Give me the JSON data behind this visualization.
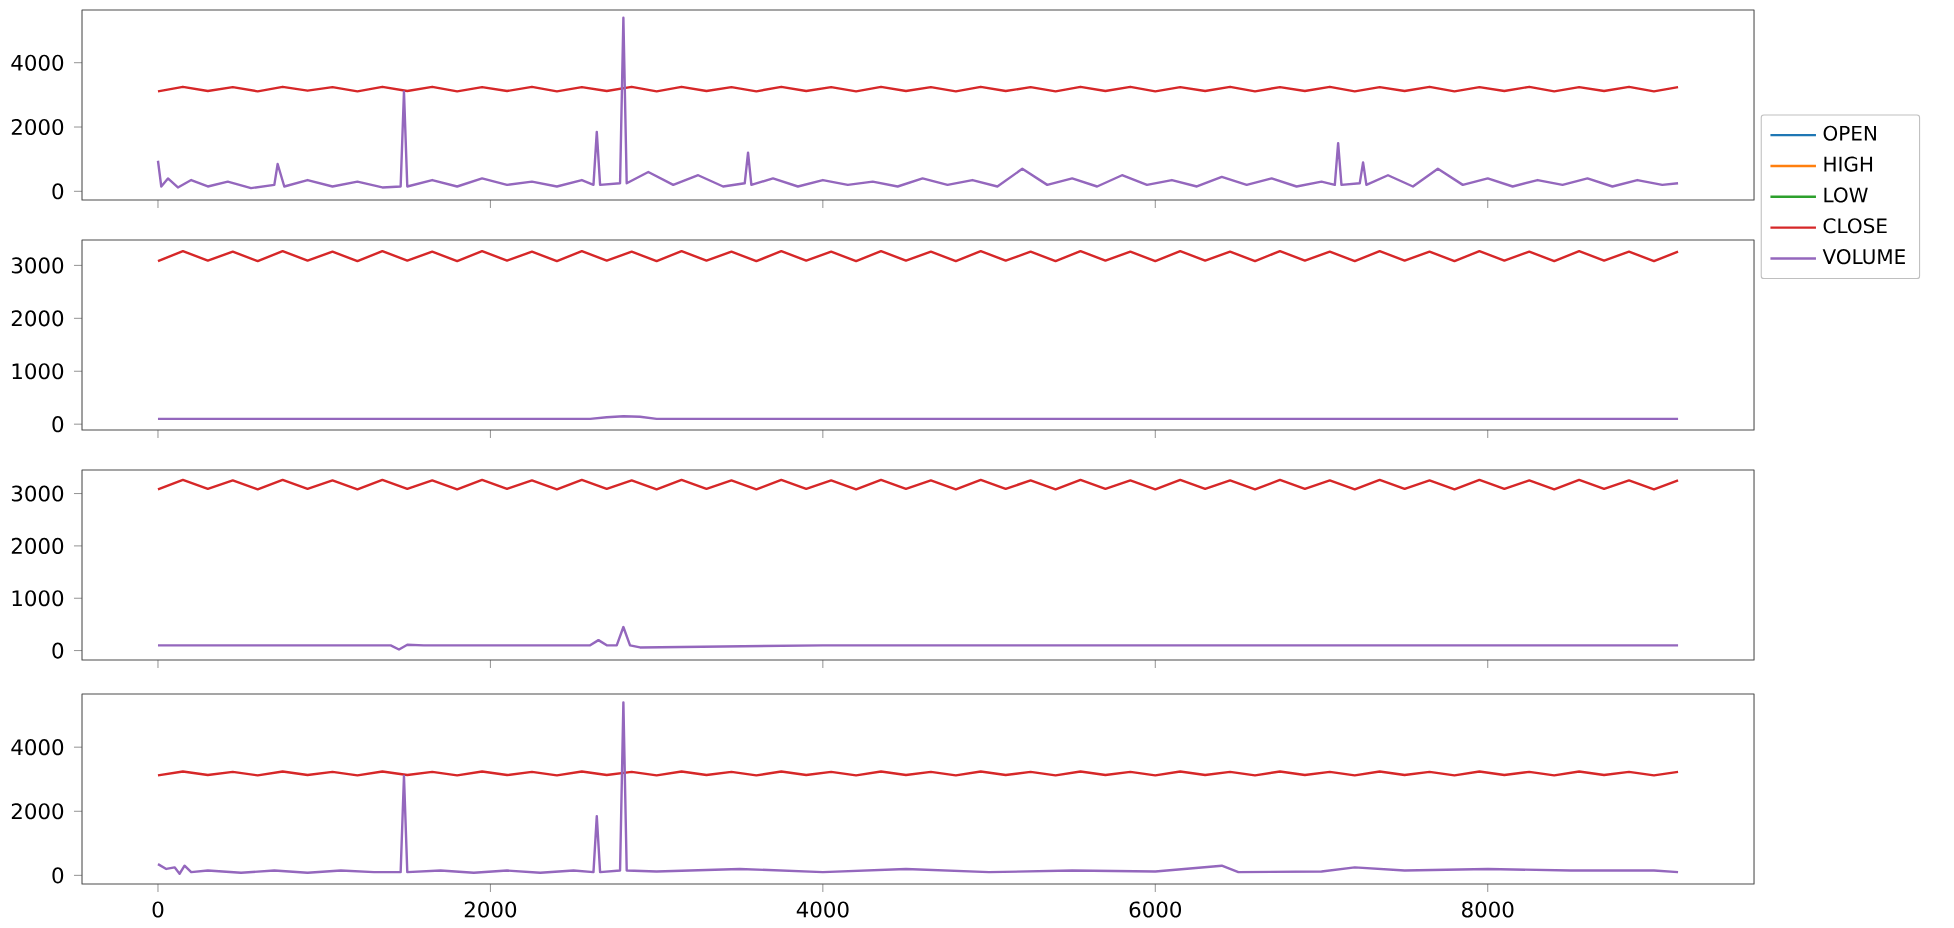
{
  "chart_data": [
    {
      "type": "line",
      "xlim": [
        -457,
        9602
      ],
      "ylim": [
        -270,
        5640
      ],
      "xticks": [
        0,
        2000,
        4000,
        6000,
        8000
      ],
      "yticks": [
        0,
        2000,
        4000
      ],
      "tick_labels": "y",
      "legend": "right",
      "marker": "none",
      "line_style": "solid",
      "x": [
        0,
        150,
        300,
        450,
        600,
        750,
        900,
        1050,
        1200,
        1350,
        1500,
        1650,
        1800,
        1950,
        2100,
        2250,
        2400,
        2550,
        2700,
        2850,
        3000,
        3150,
        3300,
        3450,
        3600,
        3750,
        3900,
        4050,
        4200,
        4350,
        4500,
        4650,
        4800,
        4950,
        5100,
        5250,
        5400,
        5550,
        5700,
        5850,
        6000,
        6150,
        6300,
        6450,
        6600,
        6750,
        6900,
        7050,
        7200,
        7350,
        7500,
        7650,
        7800,
        7950,
        8100,
        8250,
        8400,
        8550,
        8700,
        8850,
        9000,
        9145
      ],
      "series": [
        {
          "name": "OPEN",
          "color": "#1f77b4",
          "values": [
            null,
            null,
            null,
            null,
            null,
            null,
            null,
            null,
            null,
            null,
            null,
            null,
            null,
            null,
            null,
            null,
            null,
            null,
            null,
            null,
            null,
            null,
            null,
            null,
            null,
            null,
            null,
            null,
            null,
            null,
            null,
            null,
            null,
            null,
            null,
            null,
            null,
            null,
            null,
            null,
            null,
            null,
            null,
            null,
            null,
            null,
            null,
            null,
            null,
            null,
            null,
            null,
            null,
            null,
            null,
            null,
            null,
            null,
            null,
            null,
            null,
            null
          ]
        },
        {
          "name": "HIGH",
          "color": "#ff7f0e",
          "values": [
            null,
            null,
            null,
            null,
            null,
            null,
            null,
            null,
            null,
            null,
            null,
            null,
            null,
            null,
            null,
            null,
            null,
            null,
            null,
            null,
            null,
            null,
            null,
            null,
            null,
            null,
            null,
            null,
            null,
            null,
            null,
            null,
            null,
            null,
            null,
            null,
            null,
            null,
            null,
            null,
            null,
            null,
            null,
            null,
            null,
            null,
            null,
            null,
            null,
            null,
            null,
            null,
            null,
            null,
            null,
            null,
            null,
            null,
            null,
            null,
            null,
            null
          ]
        },
        {
          "name": "LOW",
          "color": "#2ca02c",
          "values": [
            null,
            null,
            null,
            null,
            null,
            null,
            null,
            null,
            null,
            null,
            null,
            null,
            null,
            null,
            null,
            null,
            null,
            null,
            null,
            null,
            null,
            null,
            null,
            null,
            null,
            null,
            null,
            null,
            null,
            null,
            null,
            null,
            null,
            null,
            null,
            null,
            null,
            null,
            null,
            null,
            null,
            null,
            null,
            null,
            null,
            null,
            null,
            null,
            null,
            null,
            null,
            null,
            null,
            null,
            null,
            null,
            null,
            null,
            null,
            null,
            null,
            null
          ]
        },
        {
          "name": "CLOSE",
          "color": "#d62728",
          "values": [
            3110,
            3250,
            3120,
            3240,
            3110,
            3250,
            3130,
            3240,
            3110,
            3250,
            3120,
            3250,
            3110,
            3240,
            3120,
            3250,
            3110,
            3240,
            3120,
            3250,
            3110,
            3250,
            3120,
            3240,
            3110,
            3250,
            3120,
            3240,
            3110,
            3250,
            3120,
            3240,
            3110,
            3250,
            3120,
            3240,
            3110,
            3250,
            3120,
            3250,
            3110,
            3240,
            3120,
            3250,
            3110,
            3240,
            3120,
            3250,
            3110,
            3240,
            3120,
            3250,
            3110,
            3240,
            3120,
            3250,
            3110,
            3240,
            3120,
            3250,
            3110,
            3240
          ]
        },
        {
          "name": "VOLUME",
          "color": "#9467bd",
          "x": [
            0,
            20,
            60,
            120,
            200,
            300,
            420,
            560,
            700,
            720,
            760,
            900,
            1050,
            1200,
            1350,
            1460,
            1480,
            1500,
            1650,
            1800,
            1950,
            2100,
            2250,
            2400,
            2550,
            2620,
            2640,
            2660,
            2780,
            2800,
            2820,
            2950,
            3100,
            3250,
            3400,
            3530,
            3550,
            3570,
            3700,
            3850,
            4000,
            4150,
            4300,
            4450,
            4600,
            4750,
            4900,
            5050,
            5200,
            5350,
            5500,
            5650,
            5800,
            5950,
            6100,
            6250,
            6400,
            6550,
            6700,
            6850,
            7000,
            7080,
            7100,
            7120,
            7230,
            7250,
            7270,
            7400,
            7550,
            7700,
            7850,
            8000,
            8150,
            8300,
            8450,
            8600,
            8750,
            8900,
            9050,
            9145
          ],
          "values": [
            950,
            150,
            400,
            120,
            350,
            150,
            300,
            100,
            200,
            850,
            150,
            350,
            150,
            300,
            120,
            150,
            3100,
            150,
            350,
            150,
            400,
            200,
            300,
            150,
            350,
            200,
            1850,
            200,
            250,
            5400,
            250,
            600,
            200,
            500,
            150,
            250,
            1200,
            200,
            400,
            150,
            350,
            200,
            300,
            150,
            400,
            200,
            350,
            150,
            700,
            200,
            400,
            150,
            500,
            200,
            350,
            150,
            450,
            200,
            400,
            150,
            300,
            200,
            1500,
            200,
            250,
            900,
            200,
            500,
            150,
            700,
            200,
            400,
            150,
            350,
            200,
            400,
            150,
            350,
            200,
            250
          ]
        }
      ]
    },
    {
      "type": "line",
      "xlim": [
        -457,
        9602
      ],
      "ylim": [
        -110,
        3480
      ],
      "xticks": [
        0,
        2000,
        4000,
        6000,
        8000
      ],
      "yticks": [
        0,
        1000,
        2000,
        3000
      ],
      "tick_labels": "y",
      "marker": "none",
      "line_style": "solid",
      "x": [
        0,
        150,
        300,
        450,
        600,
        750,
        900,
        1050,
        1200,
        1350,
        1500,
        1650,
        1800,
        1950,
        2100,
        2250,
        2400,
        2550,
        2700,
        2850,
        3000,
        3150,
        3300,
        3450,
        3600,
        3750,
        3900,
        4050,
        4200,
        4350,
        4500,
        4650,
        4800,
        4950,
        5100,
        5250,
        5400,
        5550,
        5700,
        5850,
        6000,
        6150,
        6300,
        6450,
        6600,
        6750,
        6900,
        7050,
        7200,
        7350,
        7500,
        7650,
        7800,
        7950,
        8100,
        8250,
        8400,
        8550,
        8700,
        8850,
        9000,
        9145
      ],
      "series": [
        {
          "color": "#d62728",
          "values": [
            3080,
            3270,
            3090,
            3260,
            3080,
            3270,
            3090,
            3260,
            3080,
            3270,
            3090,
            3260,
            3080,
            3270,
            3090,
            3260,
            3080,
            3270,
            3090,
            3260,
            3080,
            3270,
            3090,
            3260,
            3080,
            3270,
            3090,
            3260,
            3080,
            3270,
            3090,
            3260,
            3080,
            3270,
            3090,
            3260,
            3080,
            3270,
            3090,
            3260,
            3080,
            3270,
            3090,
            3260,
            3080,
            3270,
            3090,
            3260,
            3080,
            3270,
            3090,
            3260,
            3080,
            3270,
            3090,
            3260,
            3080,
            3270,
            3090,
            3260,
            3080,
            3260
          ]
        },
        {
          "color": "#9467bd",
          "x": [
            0,
            1000,
            2000,
            2600,
            2700,
            2800,
            2900,
            3000,
            4000,
            6000,
            8000,
            9145
          ],
          "values": [
            100,
            100,
            100,
            100,
            130,
            150,
            140,
            100,
            100,
            100,
            100,
            100
          ]
        }
      ]
    },
    {
      "type": "line",
      "xlim": [
        -457,
        9602
      ],
      "ylim": [
        -180,
        3450
      ],
      "xticks": [
        0,
        2000,
        4000,
        6000,
        8000
      ],
      "yticks": [
        0,
        1000,
        2000,
        3000
      ],
      "tick_labels": "y",
      "marker": "none",
      "line_style": "solid",
      "x": [
        0,
        150,
        300,
        450,
        600,
        750,
        900,
        1050,
        1200,
        1350,
        1500,
        1650,
        1800,
        1950,
        2100,
        2250,
        2400,
        2550,
        2700,
        2850,
        3000,
        3150,
        3300,
        3450,
        3600,
        3750,
        3900,
        4050,
        4200,
        4350,
        4500,
        4650,
        4800,
        4950,
        5100,
        5250,
        5400,
        5550,
        5700,
        5850,
        6000,
        6150,
        6300,
        6450,
        6600,
        6750,
        6900,
        7050,
        7200,
        7350,
        7500,
        7650,
        7800,
        7950,
        8100,
        8250,
        8400,
        8550,
        8700,
        8850,
        9000,
        9145
      ],
      "series": [
        {
          "color": "#d62728",
          "values": [
            3080,
            3260,
            3090,
            3250,
            3080,
            3260,
            3090,
            3250,
            3080,
            3260,
            3090,
            3250,
            3080,
            3260,
            3090,
            3250,
            3080,
            3260,
            3090,
            3250,
            3080,
            3260,
            3090,
            3250,
            3080,
            3260,
            3090,
            3250,
            3080,
            3260,
            3090,
            3250,
            3080,
            3260,
            3090,
            3250,
            3080,
            3260,
            3090,
            3250,
            3080,
            3260,
            3090,
            3250,
            3080,
            3260,
            3090,
            3250,
            3080,
            3260,
            3090,
            3250,
            3080,
            3260,
            3090,
            3250,
            3080,
            3260,
            3090,
            3250,
            3080,
            3250
          ]
        },
        {
          "color": "#9467bd",
          "x": [
            0,
            1000,
            1400,
            1450,
            1500,
            1600,
            2000,
            2600,
            2650,
            2700,
            2760,
            2800,
            2840,
            2900,
            4000,
            6000,
            8000,
            9145
          ],
          "values": [
            100,
            100,
            100,
            20,
            110,
            100,
            100,
            100,
            200,
            100,
            100,
            450,
            100,
            60,
            100,
            100,
            100,
            100
          ]
        }
      ]
    },
    {
      "type": "line",
      "xlim": [
        -457,
        9602
      ],
      "ylim": [
        -270,
        5660
      ],
      "xticks": [
        0,
        2000,
        4000,
        6000,
        8000
      ],
      "yticks": [
        0,
        2000,
        4000
      ],
      "marker": "none",
      "line_style": "solid",
      "x": [
        0,
        150,
        300,
        450,
        600,
        750,
        900,
        1050,
        1200,
        1350,
        1500,
        1650,
        1800,
        1950,
        2100,
        2250,
        2400,
        2550,
        2700,
        2850,
        3000,
        3150,
        3300,
        3450,
        3600,
        3750,
        3900,
        4050,
        4200,
        4350,
        4500,
        4650,
        4800,
        4950,
        5100,
        5250,
        5400,
        5550,
        5700,
        5850,
        6000,
        6150,
        6300,
        6450,
        6600,
        6750,
        6900,
        7050,
        7200,
        7350,
        7500,
        7650,
        7800,
        7950,
        8100,
        8250,
        8400,
        8550,
        8700,
        8850,
        9000,
        9145
      ],
      "series": [
        {
          "color": "#d62728",
          "values": [
            3120,
            3240,
            3130,
            3230,
            3120,
            3240,
            3130,
            3230,
            3120,
            3240,
            3130,
            3230,
            3120,
            3240,
            3130,
            3230,
            3120,
            3240,
            3130,
            3230,
            3120,
            3240,
            3130,
            3230,
            3120,
            3240,
            3130,
            3230,
            3120,
            3240,
            3130,
            3230,
            3120,
            3240,
            3130,
            3230,
            3120,
            3240,
            3130,
            3230,
            3120,
            3240,
            3130,
            3230,
            3120,
            3240,
            3130,
            3230,
            3120,
            3240,
            3130,
            3230,
            3120,
            3240,
            3130,
            3230,
            3120,
            3240,
            3130,
            3230,
            3120,
            3230
          ]
        },
        {
          "color": "#9467bd",
          "x": [
            0,
            50,
            100,
            130,
            160,
            200,
            300,
            500,
            700,
            900,
            1100,
            1300,
            1460,
            1480,
            1500,
            1700,
            1900,
            2100,
            2300,
            2500,
            2620,
            2640,
            2660,
            2780,
            2800,
            2820,
            3000,
            3500,
            4000,
            4500,
            5000,
            5500,
            6000,
            6400,
            6500,
            7000,
            7200,
            7500,
            8000,
            8500,
            9000,
            9145
          ],
          "values": [
            350,
            200,
            250,
            50,
            300,
            100,
            150,
            80,
            150,
            80,
            150,
            100,
            100,
            3100,
            100,
            150,
            80,
            150,
            80,
            150,
            100,
            1850,
            100,
            150,
            5400,
            150,
            120,
            200,
            100,
            200,
            100,
            150,
            120,
            300,
            100,
            120,
            250,
            150,
            200,
            150,
            150,
            100
          ]
        }
      ]
    }
  ]
}
